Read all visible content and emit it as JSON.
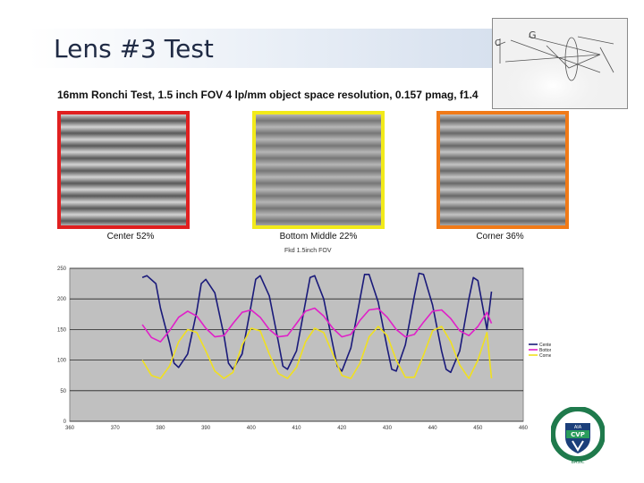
{
  "slide": {
    "title": "Lens #3 Test",
    "subtitle": "16mm Ronchi Test, 1.5 inch FOV 4 lp/mm object space resolution, 0.157 pmag, f1.4"
  },
  "samples": [
    {
      "label": "Center 52%",
      "border_color": "#e02020",
      "contrast": 0.52
    },
    {
      "label": "Bottom Middle 22%",
      "border_color": "#f2ea1a",
      "contrast": 0.22
    },
    {
      "label": "Corner 36%",
      "border_color": "#f07a18",
      "contrast": 0.36
    }
  ],
  "chart_data": {
    "type": "line",
    "title": "Fkd 1.5inch FOV",
    "xlim": [
      360,
      460
    ],
    "ylim": [
      0,
      250
    ],
    "x_ticks": [
      360,
      370,
      380,
      390,
      400,
      410,
      420,
      430,
      440,
      450,
      460
    ],
    "y_ticks": [
      0,
      50,
      100,
      150,
      200,
      250
    ],
    "grid": "horizontal",
    "legend_position": "right",
    "series": [
      {
        "name": "Center",
        "color": "#1a1a7a",
        "x": [
          376,
          377,
          379,
          380,
          382,
          383,
          384,
          386,
          388,
          389,
          390,
          392,
          394,
          395,
          396,
          398,
          400,
          401,
          402,
          404,
          406,
          407,
          408,
          410,
          412,
          413,
          414,
          416,
          418,
          419,
          420,
          422,
          424,
          425,
          426,
          428,
          430,
          431,
          432,
          434,
          436,
          437,
          438,
          440,
          442,
          443,
          444,
          446,
          448,
          449,
          450,
          452,
          453
        ],
        "y": [
          235,
          238,
          225,
          185,
          128,
          95,
          88,
          110,
          180,
          225,
          232,
          210,
          140,
          95,
          85,
          110,
          190,
          232,
          238,
          205,
          130,
          90,
          85,
          115,
          195,
          235,
          238,
          200,
          125,
          90,
          82,
          120,
          200,
          240,
          240,
          195,
          120,
          85,
          82,
          125,
          205,
          242,
          240,
          190,
          115,
          85,
          80,
          115,
          200,
          235,
          230,
          150,
          212
        ]
      },
      {
        "name": "Bottom",
        "color": "#e020c8",
        "x": [
          376,
          378,
          380,
          382,
          384,
          386,
          388,
          390,
          392,
          394,
          396,
          398,
          400,
          402,
          404,
          406,
          408,
          410,
          412,
          414,
          416,
          418,
          420,
          422,
          424,
          426,
          428,
          430,
          432,
          434,
          436,
          438,
          440,
          442,
          444,
          446,
          448,
          450,
          452,
          453
        ],
        "y": [
          158,
          137,
          130,
          148,
          170,
          180,
          172,
          152,
          138,
          140,
          160,
          178,
          182,
          170,
          150,
          138,
          140,
          160,
          180,
          185,
          172,
          152,
          138,
          142,
          165,
          182,
          184,
          170,
          150,
          138,
          142,
          162,
          180,
          182,
          168,
          148,
          140,
          155,
          178,
          160
        ]
      },
      {
        "name": "Corner",
        "color": "#f0e020",
        "x": [
          376,
          378,
          380,
          382,
          384,
          386,
          388,
          390,
          392,
          394,
          396,
          398,
          400,
          402,
          404,
          406,
          408,
          410,
          412,
          414,
          416,
          418,
          420,
          422,
          424,
          426,
          428,
          430,
          432,
          434,
          436,
          438,
          440,
          442,
          444,
          446,
          448,
          450,
          452,
          453
        ],
        "y": [
          100,
          75,
          70,
          90,
          130,
          150,
          145,
          115,
          82,
          70,
          80,
          125,
          152,
          148,
          110,
          78,
          70,
          88,
          130,
          152,
          145,
          110,
          75,
          70,
          95,
          138,
          155,
          140,
          100,
          72,
          72,
          108,
          148,
          155,
          130,
          92,
          70,
          100,
          145,
          70
        ]
      }
    ]
  },
  "sketch_note": {
    "letters": [
      "G",
      "C"
    ]
  },
  "logo": {
    "badge": "CVP",
    "top_text": "AIA",
    "ring_text": "CERTIFIED VISION PROFESSIONAL",
    "bottom": "BASIC",
    "ring_color": "#1f7a4c",
    "shield_color": "#1b3f7a"
  }
}
